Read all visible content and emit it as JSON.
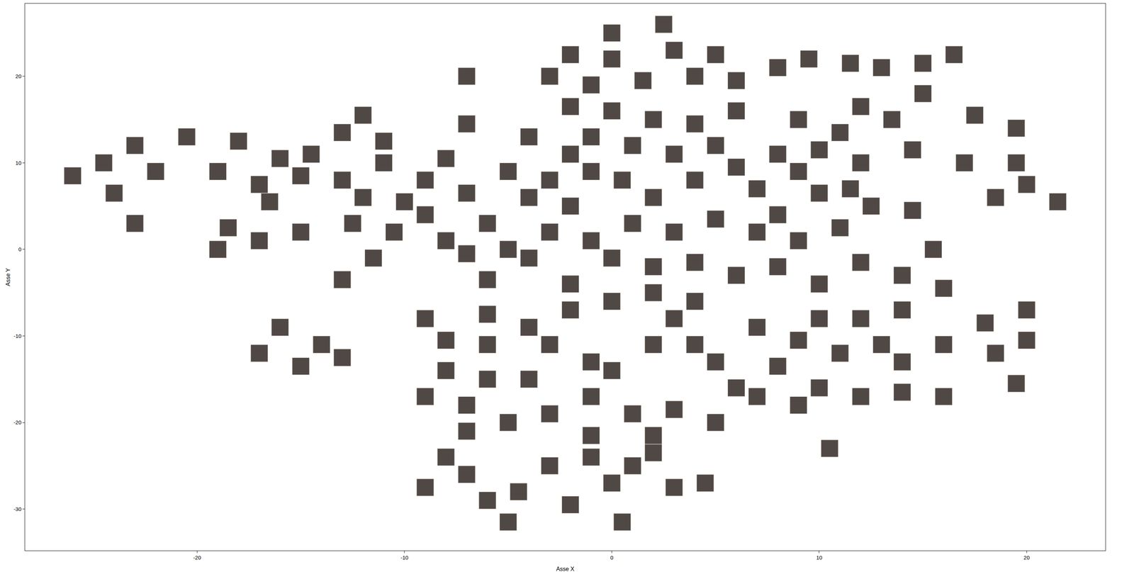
{
  "chart_data": {
    "type": "scatter",
    "xlabel": "Asse X",
    "ylabel": "Asse Y",
    "x": [
      -26,
      -23,
      -20.5,
      -24.5,
      -22,
      -19,
      -24,
      -23,
      -18,
      -16,
      -15,
      -17,
      -16.5,
      -18.5,
      -17,
      -19,
      -15,
      -14.5,
      -13,
      -12,
      -11,
      -13,
      -11,
      -12,
      -12.5,
      -10.5,
      -13,
      -11.5,
      -9,
      -8,
      -7,
      -9,
      -8,
      -10,
      -7,
      -7,
      -5,
      -4,
      -4,
      -6,
      -5,
      -7,
      -6,
      -3,
      -2,
      -1,
      -2,
      -3,
      -1,
      -4,
      -2,
      0,
      0,
      2.5,
      3,
      5,
      -3,
      -1,
      1.5,
      4,
      6,
      -2,
      0,
      2,
      4,
      6,
      5,
      3,
      1,
      -1,
      0.5,
      2,
      4,
      6,
      8,
      7,
      9,
      10,
      8,
      10,
      11,
      9,
      8,
      9.5,
      11.5,
      13,
      15,
      16.5,
      12,
      13.5,
      15,
      14.5,
      12,
      11.5,
      12.5,
      14.5,
      17,
      17.5,
      19.5,
      18.5,
      20,
      21.5,
      19.5,
      1,
      3,
      5,
      7,
      9,
      11,
      0,
      2,
      4,
      6,
      8,
      10,
      12,
      14,
      15.5,
      16,
      2,
      4,
      -2,
      0,
      -16,
      -17,
      -14,
      -13,
      -15,
      -9,
      -8,
      -6,
      -6,
      -4,
      -2,
      -3,
      -1,
      -8,
      -9,
      -7,
      -6,
      -4,
      -5,
      -7,
      -3,
      -1,
      0,
      1,
      3,
      2,
      4,
      3,
      5,
      6,
      5,
      7,
      9,
      8,
      10,
      11,
      12,
      13,
      14,
      14,
      16,
      10,
      12,
      9,
      14,
      16,
      10.5,
      18,
      18.5,
      20,
      20,
      19.5,
      -9,
      -7,
      -6,
      -4.5,
      -5,
      -3,
      -1,
      -2,
      0,
      1,
      2,
      0.5,
      3,
      4.5,
      -8,
      -1,
      2,
      7
    ],
    "y": [
      8.5,
      12,
      13,
      10,
      9,
      9,
      6.5,
      3,
      12.5,
      10.5,
      8.5,
      7.5,
      5.5,
      2.5,
      1,
      0,
      2,
      11,
      13.5,
      15.5,
      12.5,
      8,
      10,
      6,
      3,
      2,
      -3.5,
      -1,
      8,
      10.5,
      6.5,
      4,
      1,
      5.5,
      14.5,
      20,
      9,
      13,
      6,
      3,
      0,
      -0.5,
      -3.5,
      8,
      11,
      9,
      5,
      2,
      1,
      -1,
      22.5,
      25,
      22,
      26,
      23,
      22.5,
      20,
      19,
      19.5,
      20,
      19.5,
      16.5,
      16,
      15,
      14.5,
      16,
      12,
      11,
      12,
      13,
      8,
      6,
      8,
      9.5,
      11,
      7,
      9,
      6.5,
      4,
      11.5,
      13.5,
      15,
      21,
      22,
      21.5,
      21,
      21.5,
      22.5,
      16.5,
      15,
      18,
      11.5,
      10,
      7,
      5,
      4.5,
      10,
      15.5,
      14,
      6,
      7.5,
      5.5,
      10,
      3,
      2,
      3.5,
      2,
      1,
      2.5,
      -1,
      -2,
      -1.5,
      -3,
      -2,
      -4,
      -1.5,
      -3,
      0,
      -4.5,
      -5,
      -6,
      -4,
      -6,
      -9,
      -12,
      -11,
      -12.5,
      -13.5,
      -8,
      -10.5,
      -7.5,
      -11,
      -9,
      -7,
      -11,
      -13,
      -14,
      -17,
      -18,
      -15,
      -15,
      -20,
      -21,
      -19,
      -17,
      -14,
      -19,
      -18.5,
      -11,
      -11,
      -8,
      -13,
      -16,
      -20,
      -9,
      -10.5,
      -13.5,
      -8,
      -12,
      -8,
      -11,
      -7,
      -13,
      -11,
      -16,
      -17,
      -18,
      -16.5,
      -17,
      -23,
      -8.5,
      -12,
      -10.5,
      -7,
      -15.5,
      -27.5,
      -26,
      -29,
      -28,
      -31.5,
      -25,
      -24,
      -29.5,
      -27,
      -25,
      -23.5,
      -31.5,
      -27.5,
      -27,
      -24,
      -21.5,
      -21.5,
      -17
    ],
    "xlim": [
      -28.3,
      23.8
    ],
    "ylim": [
      -34.8,
      28.4
    ],
    "xticks": [
      -20,
      -10,
      0,
      10,
      20
    ],
    "yticks": [
      -30,
      -20,
      -10,
      0,
      10,
      20
    ],
    "grid": false,
    "marker": "square",
    "color": "#3d3531"
  }
}
